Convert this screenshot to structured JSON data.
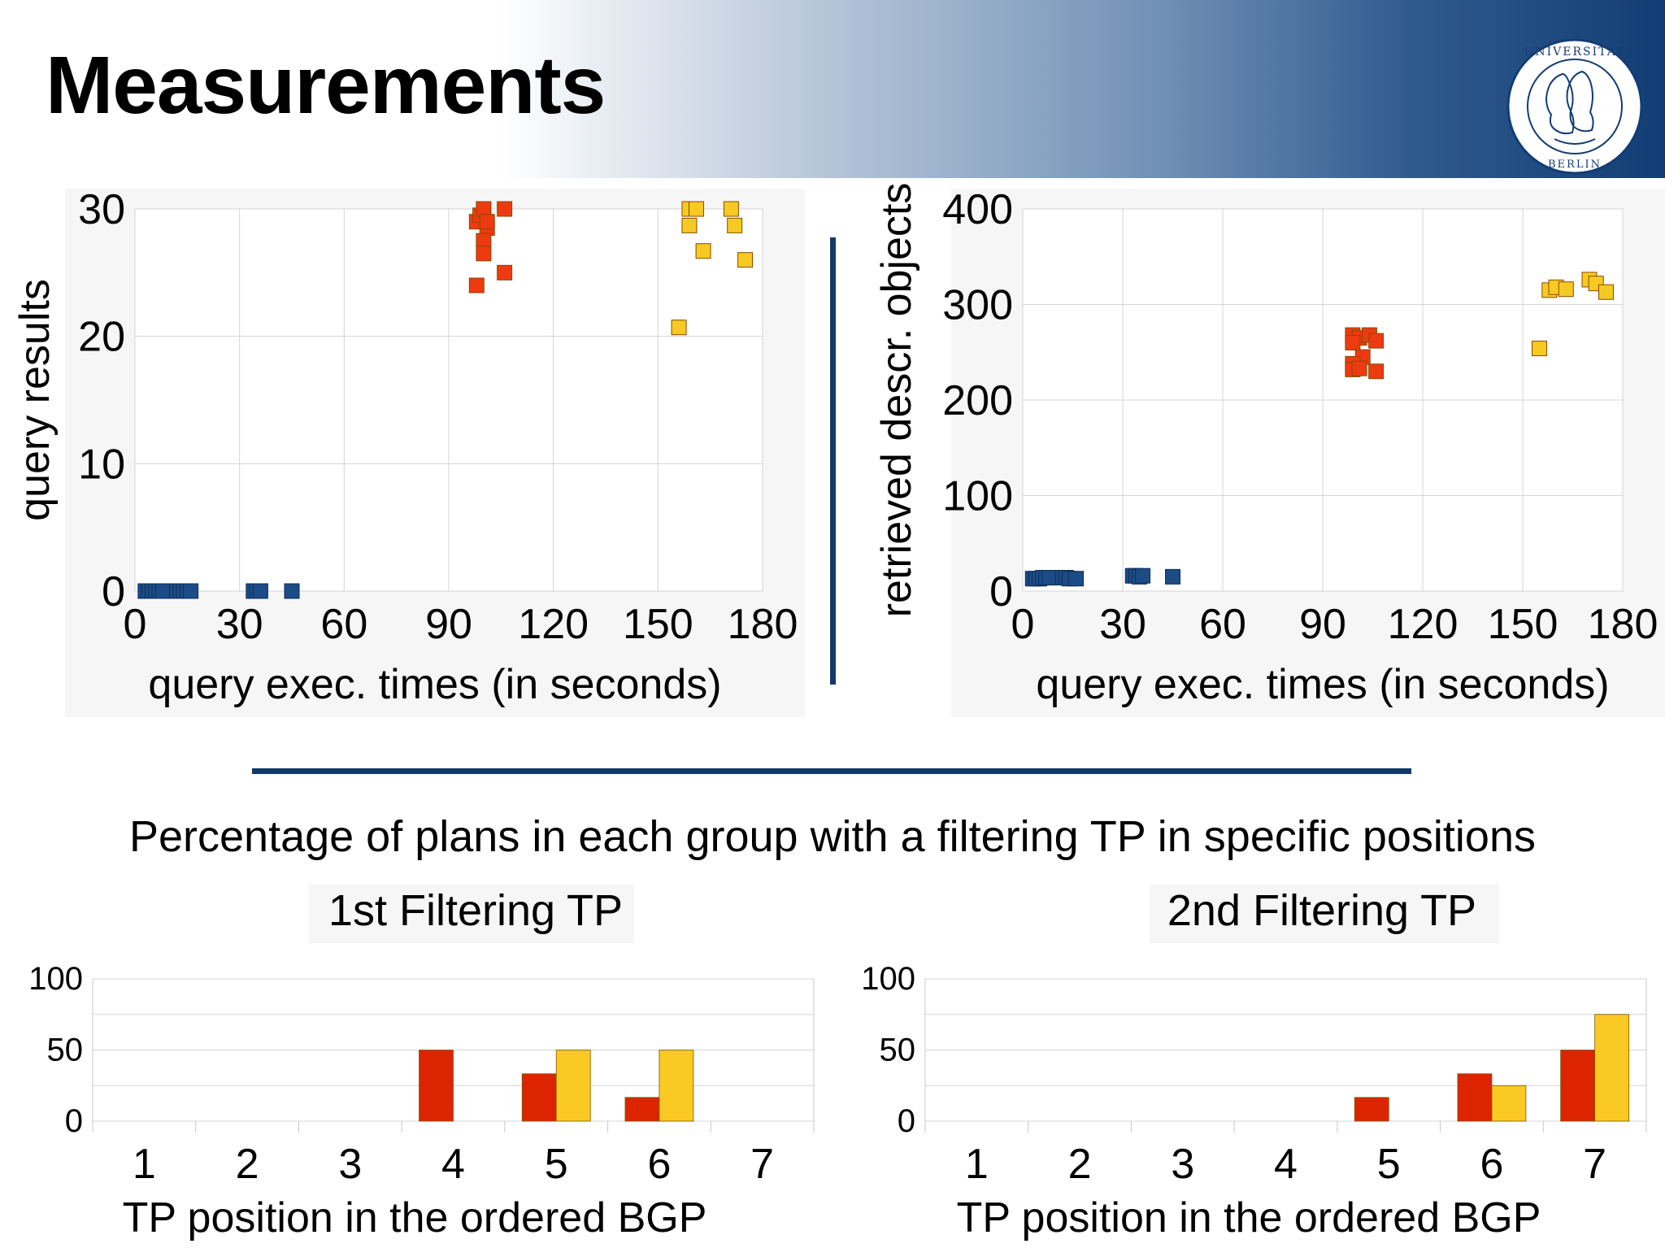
{
  "slide": {
    "title": "Measurements",
    "subtitle": "Percentage of plans in each group with a filtering TP in specific positions"
  },
  "logo": {
    "text": "HUMBOLDT-UNIVERSITÄT ZU BERLIN",
    "colors": {
      "ring": "#123d74",
      "bg": "#ffffff"
    }
  },
  "colors": {
    "blue": "#1c4c86",
    "red": "#ee3a10",
    "yellow": "#f7c923",
    "bar_red": "#dd2400",
    "bar_yellow": "#fbc923",
    "divider": "#12396a"
  },
  "chart_data": [
    {
      "type": "scatter",
      "xlabel": "query exec. times (in seconds)",
      "ylabel": "query results",
      "xlim": [
        0,
        180
      ],
      "ylim": [
        0,
        30
      ],
      "xticks": [
        "0",
        "30",
        "60",
        "90",
        "120",
        "150",
        "180"
      ],
      "yticks": [
        "0",
        "10",
        "20",
        "30"
      ],
      "grid": true,
      "series": [
        {
          "color": "#1c4c86",
          "points": [
            [
              3,
              0
            ],
            [
              4,
              0
            ],
            [
              5,
              0
            ],
            [
              6,
              0
            ],
            [
              7,
              0
            ],
            [
              8,
              0
            ],
            [
              12,
              0
            ],
            [
              13,
              0
            ],
            [
              14,
              0
            ],
            [
              15,
              0
            ],
            [
              16,
              0
            ],
            [
              34,
              0
            ],
            [
              35,
              0
            ],
            [
              36,
              0
            ],
            [
              45,
              0
            ]
          ]
        },
        {
          "color": "#ee3a10",
          "points": [
            [
              98,
              29
            ],
            [
              99,
              29.5
            ],
            [
              100,
              30
            ],
            [
              101,
              28.5
            ],
            [
              100,
              27.5
            ],
            [
              100,
              26.5
            ],
            [
              98,
              24
            ],
            [
              101,
              29
            ],
            [
              106,
              30
            ],
            [
              106,
              25
            ]
          ]
        },
        {
          "color": "#f7c923",
          "points": [
            [
              159,
              30
            ],
            [
              161,
              30
            ],
            [
              159,
              28.7
            ],
            [
              171,
              30
            ],
            [
              172,
              28.7
            ],
            [
              163,
              26.7
            ],
            [
              175,
              26
            ],
            [
              156,
              20.7
            ]
          ]
        }
      ]
    },
    {
      "type": "scatter",
      "xlabel": "query exec. times (in seconds)",
      "ylabel": "retrieved descr. objects",
      "xlim": [
        0,
        180
      ],
      "ylim": [
        0,
        400
      ],
      "xticks": [
        "0",
        "30",
        "60",
        "90",
        "120",
        "150",
        "180"
      ],
      "yticks": [
        "0",
        "100",
        "200",
        "300",
        "400"
      ],
      "grid": true,
      "series": [
        {
          "color": "#1c4c86",
          "points": [
            [
              3,
              13
            ],
            [
              4,
              13
            ],
            [
              5,
              13
            ],
            [
              6,
              14
            ],
            [
              7,
              14
            ],
            [
              8,
              14
            ],
            [
              12,
              14
            ],
            [
              13,
              14
            ],
            [
              14,
              13
            ],
            [
              16,
              13
            ],
            [
              33,
              16
            ],
            [
              34,
              16
            ],
            [
              35,
              15
            ],
            [
              36,
              16
            ],
            [
              45,
              15
            ]
          ]
        },
        {
          "color": "#ee3a10",
          "points": [
            [
              99,
              268
            ],
            [
              101,
              265
            ],
            [
              104,
              268
            ],
            [
              99,
              260
            ],
            [
              102,
              245
            ],
            [
              99,
              238
            ],
            [
              99,
              232
            ],
            [
              101,
              233
            ],
            [
              106,
              262
            ],
            [
              106,
              230
            ]
          ]
        },
        {
          "color": "#f7c923",
          "points": [
            [
              158,
              315
            ],
            [
              160,
              318
            ],
            [
              163,
              316
            ],
            [
              170,
              326
            ],
            [
              172,
              322
            ],
            [
              175,
              313
            ],
            [
              155,
              254
            ]
          ]
        }
      ]
    },
    {
      "type": "bar",
      "title": "1st Filtering TP",
      "xlabel": "TP position in the ordered BGP",
      "categories": [
        "1",
        "2",
        "3",
        "4",
        "5",
        "6",
        "7"
      ],
      "yticks": [
        "0",
        "50",
        "100"
      ],
      "ylim": [
        0,
        100
      ],
      "series": [
        {
          "color": "#dd2400",
          "values": [
            0,
            0,
            0,
            50,
            33.3,
            16.7,
            0
          ]
        },
        {
          "color": "#fbc923",
          "values": [
            0,
            0,
            0,
            0,
            50,
            50,
            0
          ]
        }
      ]
    },
    {
      "type": "bar",
      "title": "2nd Filtering TP",
      "xlabel": "TP position in the ordered BGP",
      "categories": [
        "1",
        "2",
        "3",
        "4",
        "5",
        "6",
        "7"
      ],
      "yticks": [
        "0",
        "50",
        "100"
      ],
      "ylim": [
        0,
        100
      ],
      "series": [
        {
          "color": "#dd2400",
          "values": [
            0,
            0,
            0,
            0,
            16.7,
            33.3,
            50
          ]
        },
        {
          "color": "#fbc923",
          "values": [
            0,
            0,
            0,
            0,
            0,
            25,
            75
          ]
        }
      ]
    }
  ]
}
